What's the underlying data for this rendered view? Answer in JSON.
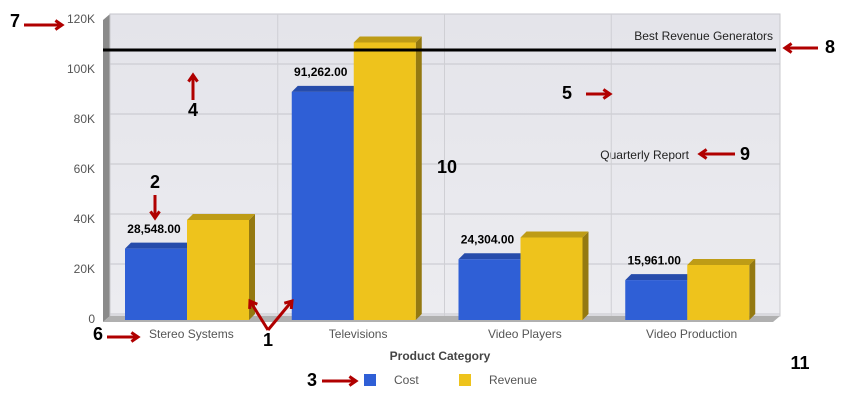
{
  "chart_data": {
    "type": "bar",
    "x_label": "Product Category",
    "categories": [
      "Stereo Systems",
      "Televisions",
      "Video Players",
      "Video Production"
    ],
    "series": [
      {
        "name": "Cost",
        "color": "#2f5fd6",
        "values": [
          28548,
          91262,
          24304,
          15961
        ],
        "value_labels": [
          "28,548.00",
          "91,262.00",
          "24,304.00",
          "15,961.00"
        ]
      },
      {
        "name": "Revenue",
        "color": "#eec31c",
        "values": [
          40000,
          111000,
          33000,
          22000
        ]
      }
    ],
    "ylim": [
      0,
      120000
    ],
    "yticks": [
      0,
      {
        "value": 20000,
        "label": "20K"
      },
      {
        "value": 40000,
        "label": "40K"
      },
      {
        "value": 60000,
        "label": "60K"
      },
      {
        "value": 80000,
        "label": "80K"
      },
      {
        "value": 100000,
        "label": "100K"
      },
      {
        "value": 120000,
        "label": "120K"
      }
    ],
    "grid": true,
    "reference_line": {
      "value": 108000,
      "label": "Best Revenue Generators"
    },
    "annotations": [
      "Quarterly Report"
    ],
    "callouts": [
      "1",
      "2",
      "3",
      "4",
      "5",
      "6",
      "7",
      "8",
      "9",
      "10",
      "11"
    ]
  }
}
